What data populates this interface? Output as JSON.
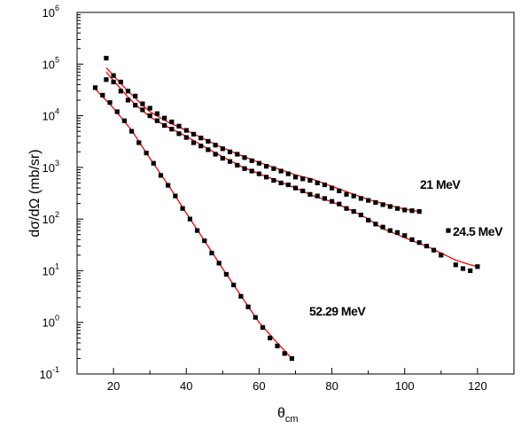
{
  "chart_data": {
    "type": "scatter",
    "title": "",
    "xlabel": "θ",
    "xlabel_sub": "cm",
    "ylabel": "dσ/dΩ (mb/sr)",
    "xlim": [
      10,
      130
    ],
    "ylim_log10": [
      -1,
      6
    ],
    "yscale": "log",
    "x_ticks": [
      "20",
      "40",
      "60",
      "80",
      "100",
      "120"
    ],
    "y_ticks": [
      {
        "base": "10",
        "exp": "-1"
      },
      {
        "base": "10",
        "exp": "0"
      },
      {
        "base": "10",
        "exp": "1"
      },
      {
        "base": "10",
        "exp": "2"
      },
      {
        "base": "10",
        "exp": "3"
      },
      {
        "base": "10",
        "exp": "4"
      },
      {
        "base": "10",
        "exp": "5"
      },
      {
        "base": "10",
        "exp": "6"
      }
    ],
    "grid": false,
    "marker_color": "#000000",
    "fit_color": "#ff0000",
    "series": [
      {
        "name": "21 MeV",
        "x": [
          18,
          20,
          22,
          24,
          26,
          28,
          30,
          32,
          34,
          36,
          38,
          40,
          42,
          44,
          46,
          48,
          50,
          52,
          54,
          56,
          58,
          60,
          62,
          64,
          66,
          68,
          70,
          72,
          74,
          76,
          78,
          80,
          82,
          84,
          86,
          88,
          90,
          92,
          94,
          96,
          98,
          100,
          102,
          104
        ],
        "y": [
          130000,
          60000,
          45000,
          30000,
          24000,
          17000,
          14000,
          11000,
          9000,
          7600,
          6300,
          5200,
          4400,
          3700,
          3200,
          2700,
          2300,
          2000,
          1800,
          1550,
          1350,
          1200,
          1050,
          950,
          850,
          750,
          650,
          600,
          560,
          500,
          460,
          400,
          350,
          300,
          280,
          250,
          230,
          210,
          190,
          175,
          160,
          150,
          145,
          140
        ],
        "fit_x": [
          18,
          20,
          22,
          24,
          26,
          28,
          30,
          35,
          40,
          45,
          50,
          55,
          60,
          65,
          70,
          75,
          80,
          85,
          90,
          95,
          100,
          104
        ],
        "fit_y": [
          85000,
          60000,
          42000,
          30000,
          22000,
          16000,
          12000,
          7500,
          5200,
          3500,
          2400,
          1700,
          1250,
          950,
          720,
          580,
          430,
          320,
          240,
          190,
          155,
          140
        ]
      },
      {
        "name": "24.5 MeV",
        "x": [
          18,
          20,
          22,
          24,
          26,
          28,
          30,
          32,
          34,
          36,
          38,
          40,
          42,
          44,
          46,
          48,
          50,
          52,
          54,
          56,
          58,
          60,
          62,
          64,
          66,
          68,
          70,
          72,
          74,
          76,
          78,
          80,
          82,
          84,
          86,
          88,
          90,
          92,
          94,
          96,
          98,
          100,
          102,
          104,
          106,
          108,
          110,
          112,
          114,
          116,
          118,
          120
        ],
        "y": [
          50000,
          45000,
          30000,
          20000,
          16000,
          13000,
          10000,
          8000,
          6500,
          5500,
          4500,
          3800,
          3000,
          2600,
          2200,
          1800,
          1500,
          1300,
          1100,
          950,
          850,
          750,
          650,
          560,
          500,
          460,
          400,
          350,
          300,
          280,
          250,
          220,
          195,
          160,
          140,
          120,
          95,
          80,
          70,
          60,
          55,
          48,
          40,
          35,
          30,
          25,
          20,
          60,
          13,
          11,
          10,
          12
        ],
        "fit_x": [
          18,
          20,
          22,
          24,
          26,
          28,
          30,
          35,
          40,
          45,
          50,
          55,
          60,
          65,
          70,
          75,
          78,
          82,
          86,
          90,
          94,
          98,
          102,
          106,
          110,
          114,
          118,
          120
        ],
        "fit_y": [
          70000,
          48000,
          33000,
          23000,
          16500,
          12500,
          9500,
          6000,
          4000,
          2500,
          1600,
          1050,
          750,
          550,
          400,
          280,
          240,
          190,
          140,
          100,
          65,
          50,
          38,
          30,
          22,
          16,
          13,
          12
        ]
      },
      {
        "name": "52.29 MeV",
        "x": [
          15,
          17,
          19,
          21,
          23,
          25,
          27,
          29,
          31,
          33,
          35,
          37,
          39,
          41,
          43,
          45,
          47,
          49,
          51,
          53,
          55,
          57,
          59,
          61,
          63,
          65,
          67,
          69
        ],
        "y": [
          35000,
          25000,
          18000,
          12000,
          8000,
          5000,
          3000,
          1900,
          1200,
          700,
          450,
          280,
          160,
          100,
          60,
          38,
          22,
          14,
          8.5,
          5.3,
          3.2,
          2,
          1.25,
          0.8,
          0.5,
          0.35,
          0.25,
          0.2
        ],
        "fit_x": [
          15,
          20,
          25,
          30,
          35,
          40,
          45,
          50,
          55,
          60,
          65,
          69
        ],
        "fit_y": [
          33000,
          14000,
          5200,
          1500,
          460,
          130,
          38,
          11,
          3.3,
          1.0,
          0.4,
          0.2
        ]
      }
    ]
  }
}
